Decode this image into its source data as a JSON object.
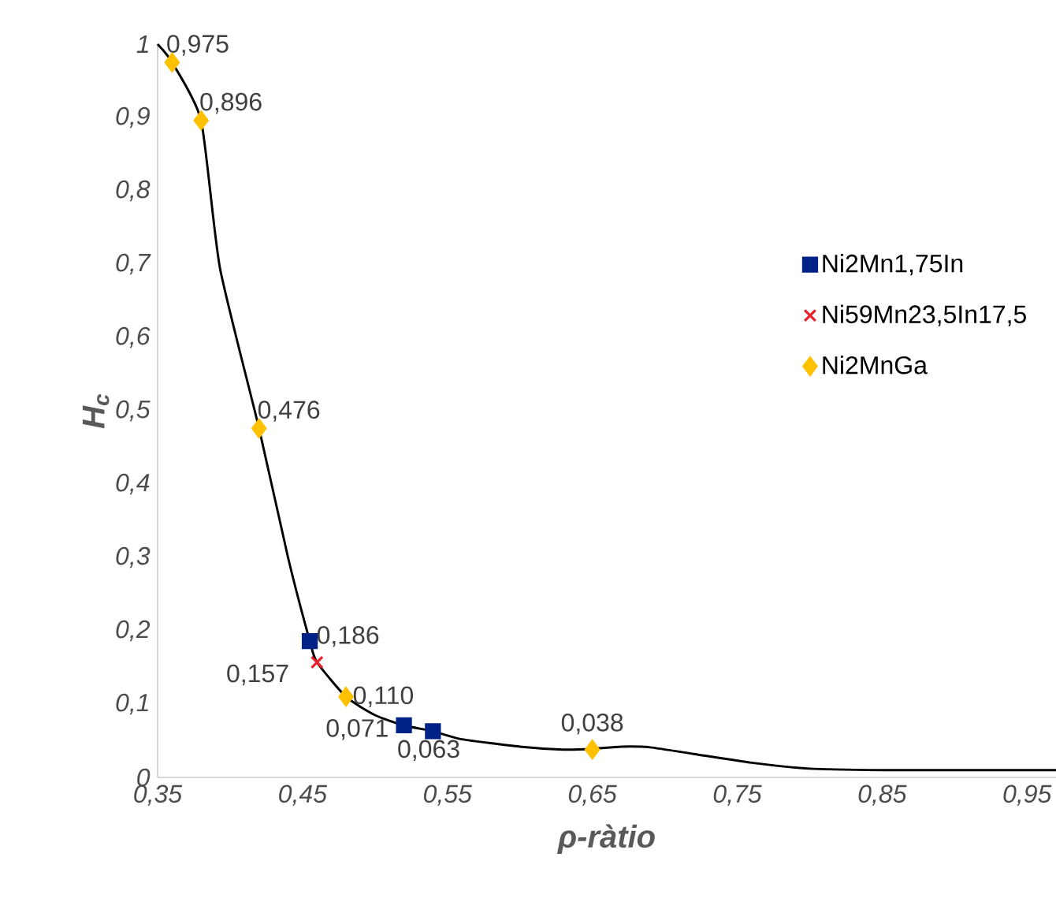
{
  "chart_data": {
    "type": "scatter",
    "xlabel": "ρ-ràtio",
    "ylabel": "H$_{c}$",
    "xlim": [
      0.35,
      0.97
    ],
    "ylim": [
      0,
      1
    ],
    "xticks": [
      {
        "value": 0.35,
        "label": "0,35"
      },
      {
        "value": 0.45,
        "label": "0,45"
      },
      {
        "value": 0.55,
        "label": "0,55"
      },
      {
        "value": 0.65,
        "label": "0,65"
      },
      {
        "value": 0.75,
        "label": "0,75"
      },
      {
        "value": 0.85,
        "label": "0,85"
      },
      {
        "value": 0.95,
        "label": "0,95"
      }
    ],
    "yticks": [
      0,
      {
        "value": 0.1,
        "label": "0,1"
      },
      {
        "value": 0.2,
        "label": "0,2"
      },
      {
        "value": 0.3,
        "label": "0,3"
      },
      {
        "value": 0.4,
        "label": "0,4"
      },
      {
        "value": 0.5,
        "label": "0,5"
      },
      {
        "value": 0.6,
        "label": "0,6"
      },
      {
        "value": 0.7,
        "label": "0,7"
      },
      {
        "value": 0.8,
        "label": "0,8"
      },
      {
        "value": 0.9,
        "label": "0,9"
      },
      1
    ],
    "legend": "right",
    "grid": false,
    "series": [
      {
        "type": "line",
        "color": "#000000",
        "marker": "none",
        "x": [
          0.35,
          0.36,
          0.38,
          0.393,
          0.42,
          0.44,
          0.455,
          0.46,
          0.48,
          0.5,
          0.52,
          0.54,
          0.56,
          0.6,
          0.63,
          0.65,
          0.67,
          0.69,
          0.72,
          0.76,
          0.8,
          0.85,
          0.9,
          0.97
        ],
        "values": [
          1.0,
          0.975,
          0.896,
          0.695,
          0.476,
          0.3,
          0.186,
          0.157,
          0.11,
          0.085,
          0.071,
          0.063,
          0.052,
          0.042,
          0.038,
          0.039,
          0.042,
          0.041,
          0.032,
          0.02,
          0.012,
          0.01,
          0.01,
          0.01
        ]
      },
      {
        "name": "Ni2Mn1,75In",
        "color": "#002288",
        "marker": "square",
        "x": [
          0.455,
          0.52,
          0.54
        ],
        "values": [
          0.186,
          0.071,
          0.063
        ],
        "value_labels": [
          "0,186",
          "0,071",
          "0,063"
        ]
      },
      {
        "name": "Ni59Mn23,5In17,5",
        "color": "#e8202a",
        "marker": "cross",
        "x": [
          0.46
        ],
        "values": [
          0.157
        ],
        "value_labels": [
          "0,157"
        ]
      },
      {
        "name": "Ni2MnGa",
        "color": "#ffc000",
        "marker": "diamond",
        "x": [
          0.36,
          0.38,
          0.42,
          0.48,
          0.65
        ],
        "values": [
          0.975,
          0.896,
          0.476,
          0.11,
          0.038
        ],
        "value_labels": [
          "0,975",
          "0,896",
          "0,476",
          "0,110",
          "0,038"
        ]
      }
    ]
  }
}
